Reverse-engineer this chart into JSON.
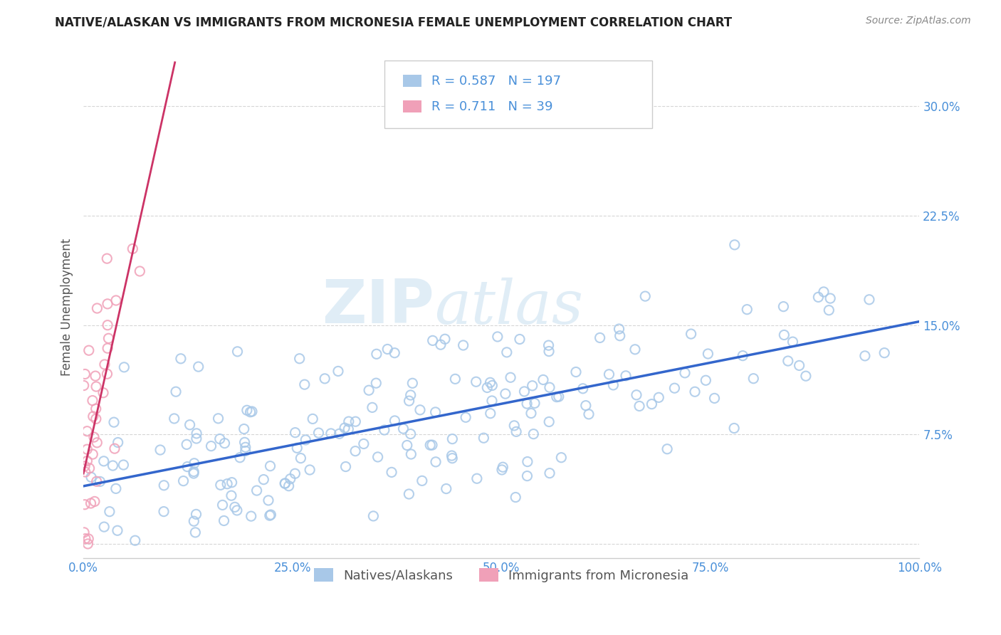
{
  "title": "NATIVE/ALASKAN VS IMMIGRANTS FROM MICRONESIA FEMALE UNEMPLOYMENT CORRELATION CHART",
  "source": "Source: ZipAtlas.com",
  "ylabel": "Female Unemployment",
  "xlim": [
    0,
    1.0
  ],
  "ylim": [
    -0.01,
    0.335
  ],
  "yticks": [
    0.0,
    0.075,
    0.15,
    0.225,
    0.3
  ],
  "ytick_labels": [
    "",
    "7.5%",
    "15.0%",
    "22.5%",
    "30.0%"
  ],
  "xticks": [
    0.0,
    0.25,
    0.5,
    0.75,
    1.0
  ],
  "xtick_labels": [
    "0.0%",
    "25.0%",
    "50.0%",
    "75.0%",
    "100.0%"
  ],
  "native_scatter_color": "#a8c8e8",
  "micronesia_scatter_color": "#f0a0b8",
  "native_line_color": "#3366cc",
  "micronesia_line_color": "#cc3366",
  "legend_label_1": "Natives/Alaskans",
  "legend_label_2": "Immigrants from Micronesia",
  "R1": 0.587,
  "N1": 197,
  "R2": 0.711,
  "N2": 39,
  "watermark_zip": "ZIP",
  "watermark_atlas": "atlas",
  "background_color": "#ffffff",
  "grid_color": "#cccccc",
  "title_fontsize": 12,
  "axis_label_color": "#4a90d9",
  "tick_label_color": "#4a90d9",
  "seed_native": 42,
  "seed_micronesia": 123
}
